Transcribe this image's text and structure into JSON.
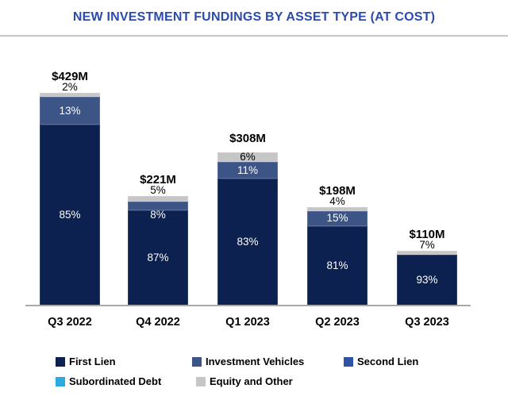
{
  "header": {
    "title_color": "#2B4BAD",
    "divider_color": "#C9C9C9"
  },
  "chart_data": {
    "type": "bar",
    "stacked": true,
    "title": "NEW INVESTMENT FUNDINGS BY ASSET TYPE (AT COST)",
    "value_format": "percent_of_total",
    "categories": [
      "Q3 2022",
      "Q4 2022",
      "Q1 2023",
      "Q2 2023",
      "Q3 2023"
    ],
    "totals": [
      {
        "label": "$429M",
        "value": 429
      },
      {
        "label": "$221M",
        "value": 221
      },
      {
        "label": "$308M",
        "value": 308
      },
      {
        "label": "$198M",
        "value": 198
      },
      {
        "label": "$110M",
        "value": 110
      }
    ],
    "series": [
      {
        "name": "First Lien",
        "color": "#0C2150",
        "values": [
          85,
          87,
          83,
          81,
          93
        ]
      },
      {
        "name": "Investment Vehicles",
        "color": "#3C5486",
        "values": [
          13,
          8,
          11,
          15,
          0
        ]
      },
      {
        "name": "Second Lien",
        "color": "#2F54A4",
        "values": [
          0,
          0,
          0,
          0,
          0
        ]
      },
      {
        "name": "Subordinated Debt",
        "color": "#29ABE2",
        "values": [
          0,
          0,
          0,
          0,
          0
        ]
      },
      {
        "name": "Equity and Other",
        "color": "#C6C6C6",
        "values": [
          2,
          5,
          6,
          4,
          7
        ]
      }
    ],
    "label_colors": {
      "light": "#FFFFFF",
      "dark": "#000000"
    },
    "label_overrides": [
      {
        "bar": 0,
        "series": "Equity and Other",
        "pos": "above"
      },
      {
        "bar": 1,
        "series": "Equity and Other",
        "pos": "above"
      },
      {
        "bar": 1,
        "series": "Investment Vehicles",
        "pos": "below",
        "style": "light"
      },
      {
        "bar": 3,
        "series": "Equity and Other",
        "pos": "above"
      },
      {
        "bar": 4,
        "series": "Equity and Other",
        "pos": "above"
      }
    ],
    "axes": {
      "y_axis_visible": false,
      "x_baseline_visible": true,
      "x_baseline_color": "#A8A8A8"
    },
    "legend_position": "bottom",
    "ylim": [
      0,
      100
    ]
  }
}
